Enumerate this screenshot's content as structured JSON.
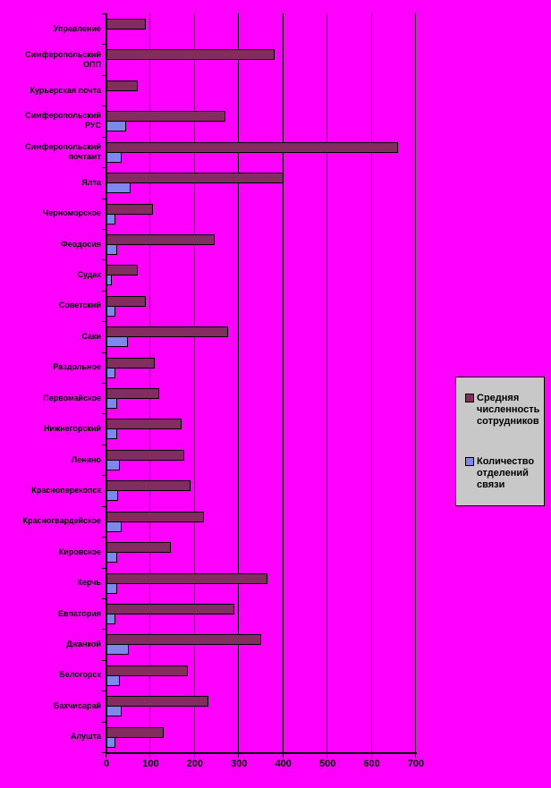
{
  "chart_data": {
    "type": "bar",
    "orientation": "horizontal",
    "title": "",
    "background_color": "#FF00FF",
    "grid": true,
    "categories": [
      "Управление",
      "Симферопольский ОПП",
      "Курьерская почта",
      "Симферопольский РУС",
      "Симферопольский почтамт",
      "Ялта",
      "Черноморское",
      "Феодосия",
      "Судак",
      "Советский",
      "Саки",
      "Раздольное",
      "Первомайское",
      "Нижнегорский",
      "Ленино",
      "Красноперекопск",
      "Красногвардейское",
      "Кировское",
      "Керчь",
      "Евпатория",
      "Джанкой",
      "Белогорск",
      "Бахчисарай",
      "Алушта"
    ],
    "series": [
      {
        "name": "Средняя численность сотрудников",
        "color": "#832C60",
        "values": [
          90,
          380,
          70,
          270,
          660,
          400,
          105,
          245,
          70,
          90,
          275,
          110,
          120,
          170,
          175,
          190,
          220,
          145,
          365,
          290,
          350,
          185,
          230,
          130
        ]
      },
      {
        "name": "Количество отделений связи",
        "color": "#7F86EE",
        "values": [
          0,
          0,
          0,
          45,
          35,
          55,
          20,
          25,
          12,
          20,
          48,
          20,
          25,
          25,
          30,
          27,
          35,
          25,
          25,
          20,
          50,
          30,
          35,
          20
        ]
      }
    ],
    "x_axis": {
      "min": 0,
      "max": 700,
      "tick_step": 100,
      "tick_labels": [
        "0",
        "100",
        "200",
        "300",
        "400",
        "500",
        "600",
        "700"
      ]
    },
    "legend": {
      "position": "right",
      "background": "#C8C8C8"
    }
  }
}
